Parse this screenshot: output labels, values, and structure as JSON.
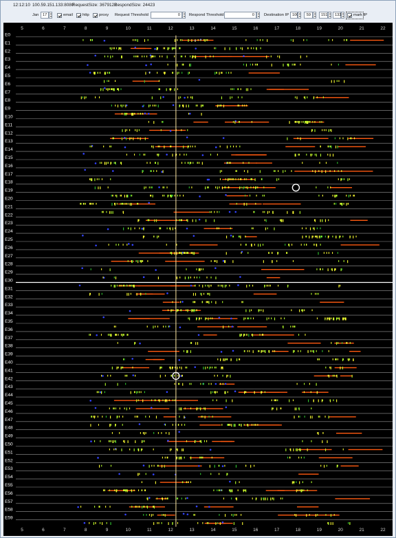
{
  "titlebar": {
    "time": "12:12:10",
    "address": "100.59.151.133:8080",
    "request_size": "RequestSize: 3679122",
    "respond_size": "RespondSize: 24423"
  },
  "toolbar": {
    "month": "Jan",
    "day": "17",
    "email_label": "email",
    "email_checked": true,
    "http_label": "http",
    "http_checked": true,
    "proxy_label": "proxy",
    "proxy_checked": true,
    "request_threshold_label": "Request Threshold",
    "request_threshold_value": "0",
    "respond_threshold_label": "Respond Threshold",
    "respond_threshold_value": "0",
    "destination_ip_label": "Destination IP",
    "ip1": "100",
    "ip2": "59",
    "ip3": "151",
    "ip4": "133",
    "mark_ip_label": "mark IP",
    "mark_ip_checked": true
  },
  "chart_data": {
    "type": "scatter",
    "title": "",
    "xlabel": "",
    "ylabel": "",
    "xlim": [
      5,
      22
    ],
    "x_ticks": [
      5,
      6,
      7,
      8,
      9,
      10,
      11,
      12,
      13,
      14,
      15,
      16,
      17,
      18,
      19,
      20,
      21,
      22
    ],
    "rows": [
      "E0",
      "E1",
      "E2",
      "E3",
      "E4",
      "E5",
      "E6",
      "E7",
      "E8",
      "E9",
      "E10",
      "E11",
      "E12",
      "E13",
      "E14",
      "E15",
      "E16",
      "E17",
      "E18",
      "E19",
      "E20",
      "E21",
      "E22",
      "E23",
      "E24",
      "E25",
      "E26",
      "E27",
      "E28",
      "E29",
      "E30",
      "E31",
      "E32",
      "E33",
      "E34",
      "E35",
      "E36",
      "E37",
      "E38",
      "E39",
      "E40",
      "E41",
      "E42",
      "E43",
      "E44",
      "E45",
      "E46",
      "E47",
      "E48",
      "E49",
      "E50",
      "E51",
      "E52",
      "E53",
      "E54",
      "E55",
      "E56",
      "E57",
      "E58",
      "E59"
    ],
    "highlighted_row": "E30",
    "current_time_line_x": 12.25,
    "circle_markers": [
      {
        "row": "E18",
        "x": 17.9
      },
      {
        "row": "E41",
        "x": 12.25
      }
    ],
    "colors": {
      "background": "#000000",
      "row_line": "#9a9a9a",
      "highlight_line": "#ffffff",
      "event_yellow": "#ffff33",
      "event_lime": "#b4ff2a",
      "event_green": "#33cc33",
      "event_blue": "#3344ff",
      "event_orange": "#ff5a10",
      "time_line": "#ffe8a0",
      "axis_text": "#d7d7d7",
      "label_text": "#ffffff"
    }
  }
}
